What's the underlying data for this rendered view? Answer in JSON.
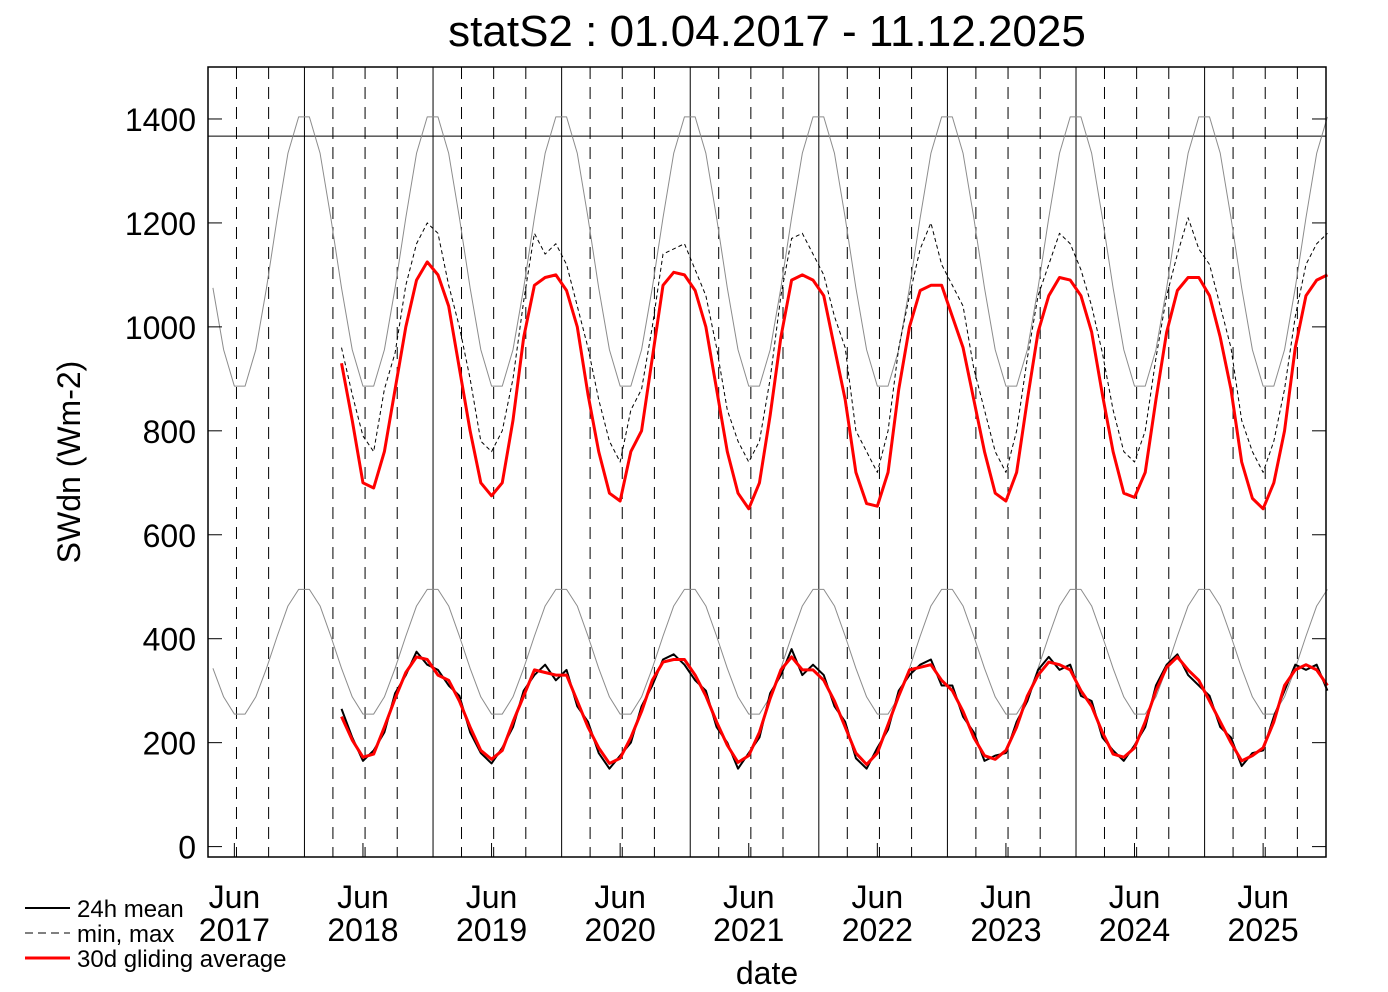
{
  "chart_data": {
    "type": "line",
    "title": "statS2 : 01.04.2017 - 11.12.2025",
    "xlabel": "date",
    "ylabel": "SWdn (Wm-2)",
    "xlim": [
      "2017-04-01",
      "2025-12-11"
    ],
    "ylim": [
      -20,
      1500
    ],
    "yticks": [
      0,
      200,
      400,
      600,
      800,
      1000,
      1200,
      1400
    ],
    "xticks": [
      {
        "value": "2017-06",
        "label": [
          "Jun",
          "2017"
        ]
      },
      {
        "value": "2018-06",
        "label": [
          "Jun",
          "2018"
        ]
      },
      {
        "value": "2019-06",
        "label": [
          "Jun",
          "2019"
        ]
      },
      {
        "value": "2020-06",
        "label": [
          "Jun",
          "2020"
        ]
      },
      {
        "value": "2021-06",
        "label": [
          "Jun",
          "2021"
        ]
      },
      {
        "value": "2022-06",
        "label": [
          "Jun",
          "2022"
        ]
      },
      {
        "value": "2023-06",
        "label": [
          "Jun",
          "2023"
        ]
      },
      {
        "value": "2024-06",
        "label": [
          "Jun",
          "2024"
        ]
      },
      {
        "value": "2025-06",
        "label": [
          "Jun",
          "2025"
        ]
      }
    ],
    "grid_solid": [
      "2018-01-01",
      "2019-01-01",
      "2020-01-01",
      "2021-01-01",
      "2022-01-01",
      "2023-01-01",
      "2024-01-01",
      "2025-01-01"
    ],
    "grid_dashed": [
      "2017-06-21",
      "2017-09-21",
      "2018-03-21",
      "2018-06-21",
      "2018-09-21",
      "2019-03-21",
      "2019-06-21",
      "2019-09-21",
      "2020-03-21",
      "2020-06-21",
      "2020-09-21",
      "2021-03-21",
      "2021-06-21",
      "2021-09-21",
      "2022-03-21",
      "2022-06-21",
      "2022-09-21",
      "2023-03-21",
      "2023-06-21",
      "2023-09-21",
      "2024-03-21",
      "2024-06-21",
      "2024-09-21",
      "2025-03-21",
      "2025-06-21",
      "2025-09-21"
    ],
    "hline": 1367,
    "legend": "lower-left",
    "x": [
      "2017-04",
      "2017-05",
      "2017-06",
      "2017-07",
      "2017-08",
      "2017-09",
      "2017-10",
      "2017-11",
      "2017-12",
      "2018-01",
      "2018-02",
      "2018-03",
      "2018-04",
      "2018-05",
      "2018-06",
      "2018-07",
      "2018-08",
      "2018-09",
      "2018-10",
      "2018-11",
      "2018-12",
      "2019-01",
      "2019-02",
      "2019-03",
      "2019-04",
      "2019-05",
      "2019-06",
      "2019-07",
      "2019-08",
      "2019-09",
      "2019-10",
      "2019-11",
      "2019-12",
      "2020-01",
      "2020-02",
      "2020-03",
      "2020-04",
      "2020-05",
      "2020-06",
      "2020-07",
      "2020-08",
      "2020-09",
      "2020-10",
      "2020-11",
      "2020-12",
      "2021-01",
      "2021-02",
      "2021-03",
      "2021-04",
      "2021-05",
      "2021-06",
      "2021-07",
      "2021-08",
      "2021-09",
      "2021-10",
      "2021-11",
      "2021-12",
      "2022-01",
      "2022-02",
      "2022-03",
      "2022-04",
      "2022-05",
      "2022-06",
      "2022-07",
      "2022-08",
      "2022-09",
      "2022-10",
      "2022-11",
      "2022-12",
      "2023-01",
      "2023-02",
      "2023-03",
      "2023-04",
      "2023-05",
      "2023-06",
      "2023-07",
      "2023-08",
      "2023-09",
      "2023-10",
      "2023-11",
      "2023-12",
      "2024-01",
      "2024-02",
      "2024-03",
      "2024-04",
      "2024-05",
      "2024-06",
      "2024-07",
      "2024-08",
      "2024-09",
      "2024-10",
      "2024-11",
      "2024-12",
      "2025-01",
      "2025-02",
      "2025-03",
      "2025-04",
      "2025-05",
      "2025-06",
      "2025-07",
      "2025-08",
      "2025-09",
      "2025-10",
      "2025-11",
      "2025-12"
    ],
    "series": [
      {
        "color": "#8c8c8c",
        "style": "solid",
        "width": 1,
        "values": [
          1075,
          956,
          886,
          886,
          956,
          1075,
          1210,
          1334,
          1404,
          1404,
          1334,
          1210,
          1075,
          956,
          886,
          886,
          956,
          1075,
          1210,
          1334,
          1404,
          1404,
          1334,
          1210,
          1075,
          956,
          886,
          886,
          956,
          1075,
          1210,
          1334,
          1404,
          1404,
          1334,
          1210,
          1075,
          956,
          886,
          886,
          956,
          1075,
          1210,
          1334,
          1404,
          1404,
          1334,
          1210,
          1075,
          956,
          886,
          886,
          956,
          1075,
          1210,
          1334,
          1404,
          1404,
          1334,
          1210,
          1075,
          956,
          886,
          886,
          956,
          1075,
          1210,
          1334,
          1404,
          1404,
          1334,
          1210,
          1075,
          956,
          886,
          886,
          956,
          1075,
          1210,
          1334,
          1404,
          1404,
          1334,
          1210,
          1075,
          956,
          886,
          886,
          956,
          1075,
          1210,
          1334,
          1404,
          1404,
          1334,
          1210,
          1075,
          956,
          886,
          886,
          956,
          1075,
          1210,
          1334,
          1404
        ]
      },
      {
        "color": "#8c8c8c",
        "style": "solid",
        "width": 1,
        "values": [
          343,
          288,
          255,
          255,
          288,
          343,
          405,
          463,
          495,
          495,
          463,
          405,
          343,
          288,
          255,
          255,
          288,
          343,
          405,
          463,
          495,
          495,
          463,
          405,
          343,
          288,
          255,
          255,
          288,
          343,
          405,
          463,
          495,
          495,
          463,
          405,
          343,
          288,
          255,
          255,
          288,
          343,
          405,
          463,
          495,
          495,
          463,
          405,
          343,
          288,
          255,
          255,
          288,
          343,
          405,
          463,
          495,
          495,
          463,
          405,
          343,
          288,
          255,
          255,
          288,
          343,
          405,
          463,
          495,
          495,
          463,
          405,
          343,
          288,
          255,
          255,
          288,
          343,
          405,
          463,
          495,
          495,
          463,
          405,
          343,
          288,
          255,
          255,
          288,
          343,
          405,
          463,
          495,
          495,
          463,
          405,
          343,
          288,
          255,
          255,
          288,
          343,
          405,
          463,
          495
        ]
      },
      {
        "name": "min, max",
        "color": "#000000",
        "style": "dashed",
        "width": 1,
        "values": [
          null,
          null,
          null,
          null,
          null,
          null,
          null,
          null,
          null,
          null,
          null,
          null,
          960,
          870,
          790,
          760,
          880,
          950,
          1080,
          1160,
          1200,
          1180,
          1080,
          1000,
          900,
          780,
          760,
          800,
          900,
          1050,
          1180,
          1140,
          1160,
          1120,
          1040,
          960,
          860,
          780,
          740,
          840,
          880,
          1000,
          1140,
          1150,
          1160,
          1110,
          1060,
          960,
          840,
          780,
          740,
          780,
          900,
          1060,
          1170,
          1180,
          1140,
          1100,
          1020,
          960,
          800,
          760,
          720,
          800,
          960,
          1060,
          1150,
          1200,
          1120,
          1080,
          1040,
          920,
          840,
          760,
          720,
          800,
          940,
          1060,
          1120,
          1180,
          1160,
          1110,
          1040,
          950,
          840,
          760,
          740,
          800,
          940,
          1060,
          1140,
          1210,
          1150,
          1120,
          1040,
          960,
          820,
          760,
          720,
          780,
          880,
          1020,
          1120,
          1160,
          1180
        ]
      },
      {
        "name": "24h mean",
        "color": "#000000",
        "style": "solid",
        "width": 2,
        "values": [
          null,
          null,
          null,
          null,
          null,
          null,
          null,
          null,
          null,
          null,
          null,
          null,
          265,
          210,
          165,
          185,
          220,
          295,
          330,
          375,
          350,
          340,
          310,
          290,
          220,
          180,
          160,
          190,
          230,
          300,
          330,
          350,
          320,
          340,
          270,
          240,
          180,
          150,
          175,
          200,
          270,
          310,
          360,
          370,
          350,
          320,
          300,
          230,
          200,
          150,
          180,
          210,
          295,
          330,
          380,
          330,
          350,
          330,
          270,
          240,
          170,
          150,
          190,
          225,
          300,
          330,
          350,
          360,
          310,
          310,
          250,
          220,
          165,
          175,
          180,
          240,
          280,
          340,
          365,
          340,
          350,
          290,
          280,
          210,
          185,
          165,
          195,
          230,
          310,
          350,
          370,
          330,
          310,
          290,
          230,
          210,
          155,
          180,
          185,
          250,
          300,
          350,
          340,
          350,
          300
        ]
      },
      {
        "name": "30d gliding average",
        "color": "#ff0000",
        "style": "solid",
        "width": 3,
        "values": [
          null,
          null,
          null,
          null,
          null,
          null,
          null,
          null,
          null,
          null,
          null,
          null,
          930,
          820,
          700,
          690,
          760,
          880,
          1000,
          1090,
          1125,
          1100,
          1040,
          920,
          800,
          700,
          675,
          700,
          820,
          980,
          1080,
          1095,
          1100,
          1070,
          1000,
          870,
          760,
          680,
          665,
          760,
          800,
          940,
          1080,
          1105,
          1100,
          1070,
          1000,
          880,
          760,
          680,
          650,
          700,
          830,
          980,
          1090,
          1100,
          1090,
          1060,
          960,
          860,
          720,
          660,
          655,
          720,
          880,
          1000,
          1070,
          1080,
          1080,
          1020,
          960,
          860,
          760,
          680,
          665,
          720,
          860,
          990,
          1060,
          1095,
          1090,
          1060,
          990,
          870,
          760,
          680,
          672,
          720,
          860,
          990,
          1070,
          1095,
          1095,
          1060,
          980,
          880,
          740,
          670,
          650,
          700,
          800,
          960,
          1060,
          1090,
          1100
        ]
      },
      {
        "color": "#ff0000",
        "style": "solid",
        "width": 3,
        "values": [
          null,
          null,
          null,
          null,
          null,
          null,
          null,
          null,
          null,
          null,
          null,
          null,
          250,
          205,
          172,
          178,
          230,
          285,
          335,
          365,
          360,
          330,
          320,
          280,
          230,
          185,
          168,
          185,
          240,
          290,
          340,
          335,
          330,
          330,
          280,
          230,
          190,
          160,
          170,
          210,
          260,
          320,
          355,
          360,
          360,
          330,
          290,
          240,
          195,
          162,
          175,
          220,
          285,
          340,
          365,
          340,
          340,
          320,
          280,
          230,
          180,
          158,
          180,
          235,
          290,
          340,
          345,
          350,
          320,
          300,
          260,
          210,
          175,
          168,
          185,
          230,
          290,
          330,
          355,
          350,
          340,
          300,
          270,
          220,
          178,
          172,
          190,
          240,
          300,
          345,
          365,
          340,
          320,
          280,
          240,
          200,
          165,
          175,
          190,
          240,
          310,
          340,
          350,
          340,
          310
        ]
      }
    ]
  }
}
